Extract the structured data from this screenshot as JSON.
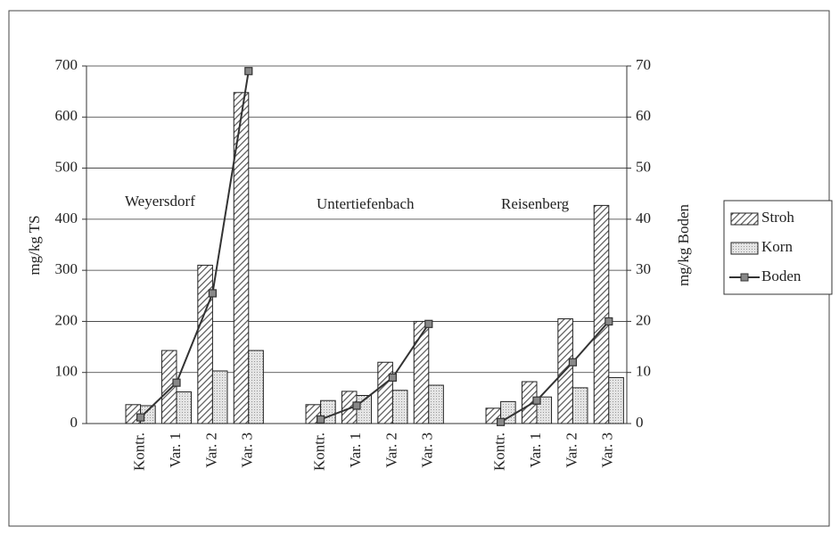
{
  "chart_data": {
    "type": "bar",
    "categories": [
      null,
      "Kontr.",
      "Var. 1",
      "Var. 2",
      "Var. 3",
      null,
      "Kontr.",
      "Var. 1",
      "Var. 2",
      "Var. 3",
      null,
      "Kontr.",
      "Var. 1",
      "Var. 2",
      "Var. 3"
    ],
    "series": [
      {
        "name": "Stroh",
        "type": "bar",
        "color": "#555555",
        "values": [
          null,
          37,
          143,
          310,
          648,
          null,
          37,
          63,
          120,
          200,
          null,
          30,
          82,
          205,
          427
        ]
      },
      {
        "name": "Korn",
        "type": "bar",
        "color": "#e4e4e4",
        "values": [
          null,
          35,
          62,
          103,
          143,
          null,
          45,
          55,
          65,
          75,
          null,
          43,
          52,
          70,
          90
        ]
      },
      {
        "name": "Boden",
        "type": "line",
        "axis": "y2",
        "color": "#333333",
        "values": [
          null,
          1.2,
          8,
          25.5,
          69,
          null,
          0.8,
          3.5,
          9,
          19.5,
          null,
          0.3,
          4.5,
          12,
          20
        ]
      }
    ],
    "annotations": [
      "Weyersdorf",
      "Untertiefenbach",
      "Reisenberg"
    ],
    "ylabel": "mg/kg TS",
    "y2label": "mg/kg Boden",
    "ylim": [
      0,
      700
    ],
    "yticks": [
      0,
      100,
      200,
      300,
      400,
      500,
      600,
      700
    ],
    "y2lim": [
      0,
      70
    ],
    "y2ticks": [
      0,
      10,
      20,
      30,
      40,
      50,
      60,
      70
    ],
    "grid": true,
    "legend": "right"
  }
}
